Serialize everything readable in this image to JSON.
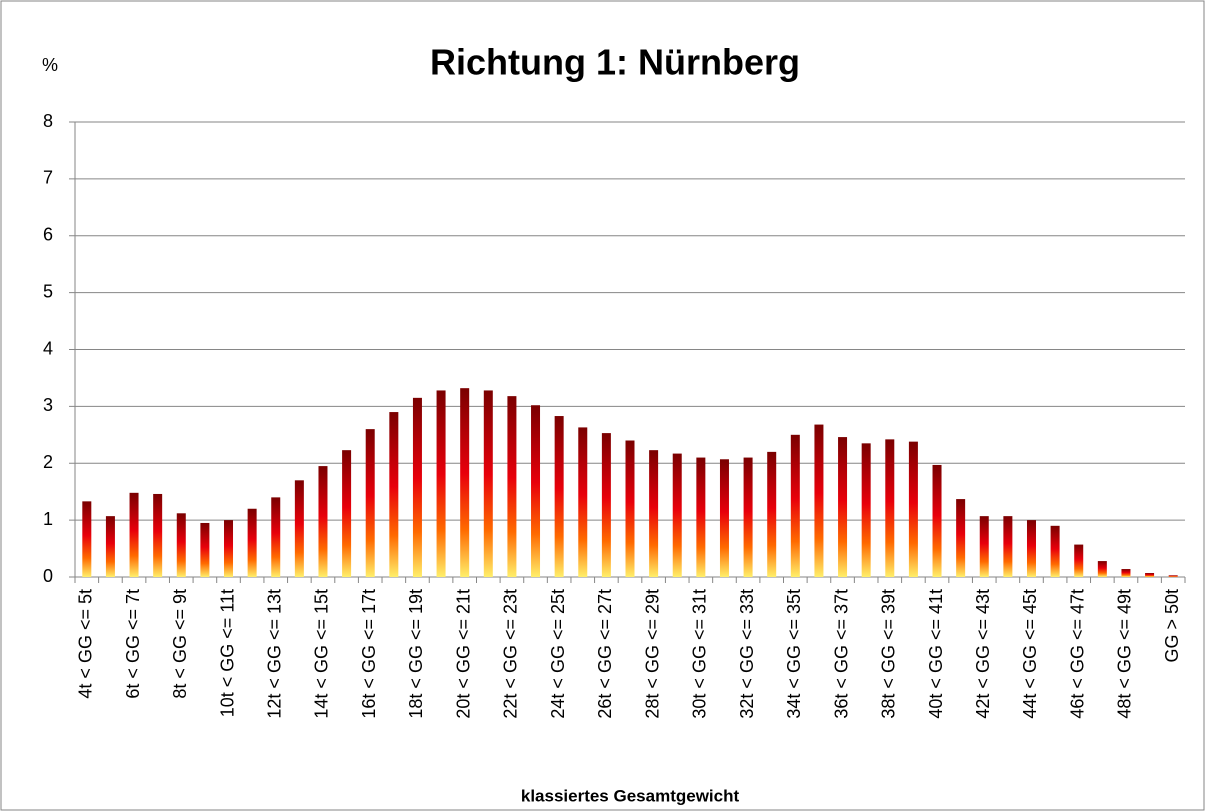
{
  "chart_data": {
    "type": "bar",
    "title": "Richtung 1: Nürnberg",
    "y_label": "%",
    "x_label": "klassiertes Gesamtgewicht",
    "categories": [
      "4t < GG <= 5t",
      null,
      "6t < GG <= 7t",
      null,
      "8t < GG <= 9t",
      null,
      "10t < GG <= 11t",
      null,
      "12t < GG <= 13t",
      null,
      "14t < GG <= 15t",
      null,
      "16t < GG <= 17t",
      null,
      "18t < GG <= 19t",
      null,
      "20t < GG <= 21t",
      null,
      "22t < GG <= 23t",
      null,
      "24t < GG <= 25t",
      null,
      "26t < GG <= 27t",
      null,
      "28t < GG <= 29t",
      null,
      "30t < GG <= 31t",
      null,
      "32t < GG <= 33t",
      null,
      "34t < GG <= 35t",
      null,
      "36t < GG <= 37t",
      null,
      "38t < GG <= 39t",
      null,
      "40t < GG <= 41t",
      null,
      "42t < GG <= 43t",
      null,
      "44t < GG <= 45t",
      null,
      "46t < GG <= 47t",
      null,
      "48t < GG <= 49t",
      null,
      "GG > 50t"
    ],
    "values": [
      1.33,
      1.07,
      1.48,
      1.46,
      1.12,
      0.95,
      1.0,
      1.2,
      1.4,
      1.7,
      1.95,
      2.23,
      2.6,
      2.9,
      3.15,
      3.28,
      3.32,
      3.28,
      3.18,
      3.02,
      2.83,
      2.63,
      2.53,
      2.4,
      2.23,
      2.17,
      2.1,
      2.07,
      2.1,
      2.2,
      2.5,
      2.68,
      2.46,
      2.35,
      2.42,
      2.38,
      1.97,
      1.37,
      1.07,
      1.07,
      1.0,
      0.9,
      0.57,
      0.28,
      0.14,
      0.07,
      0.03
    ],
    "color": "#7a0000",
    "ylim": [
      0,
      8
    ],
    "yticks": [
      0,
      1,
      2,
      3,
      4,
      5,
      6,
      7,
      8
    ],
    "grid": true
  }
}
